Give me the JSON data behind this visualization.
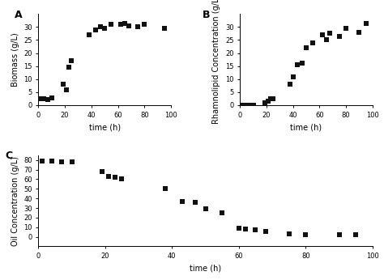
{
  "panel_A": {
    "label": "A",
    "scatter_x": [
      1,
      4,
      7,
      10,
      19,
      21,
      23,
      25,
      38,
      43,
      47,
      50,
      55,
      62,
      65,
      68,
      75,
      80,
      95
    ],
    "scatter_y": [
      2.5,
      2.5,
      2.3,
      2.8,
      8.0,
      6.0,
      14.5,
      17.0,
      27.0,
      29.0,
      30.0,
      29.5,
      31.0,
      31.0,
      31.5,
      30.5,
      30.2,
      31.0,
      29.5
    ],
    "xlabel": "time (h)",
    "ylabel": "Biomass (g/L)",
    "xlim": [
      0,
      100
    ],
    "ylim": [
      0,
      35
    ],
    "yticks": [
      0,
      5,
      10,
      15,
      20,
      25,
      30
    ],
    "xticks": [
      0,
      20,
      40,
      60,
      80,
      100
    ],
    "logistic_p0": [
      31,
      0.15,
      33
    ]
  },
  "panel_B": {
    "label": "B",
    "scatter_x": [
      1,
      4,
      7,
      10,
      19,
      21,
      23,
      25,
      38,
      40,
      43,
      47,
      50,
      55,
      62,
      65,
      68,
      75,
      80,
      90,
      95
    ],
    "scatter_y": [
      0.0,
      0.0,
      0.0,
      0.0,
      1.0,
      1.5,
      2.5,
      2.5,
      8.0,
      11.0,
      15.5,
      16.0,
      22.0,
      24.0,
      27.0,
      25.0,
      27.5,
      26.5,
      29.5,
      28.0,
      31.5
    ],
    "xlabel": "time (h)",
    "ylabel": "Rhamnolipid Concentration (g/L)",
    "xlim": [
      0,
      100
    ],
    "ylim": [
      0,
      35
    ],
    "yticks": [
      0,
      5,
      10,
      15,
      20,
      25,
      30
    ],
    "xticks": [
      0,
      20,
      40,
      60,
      80,
      100
    ],
    "power_p0": [
      0.001,
      2.0
    ]
  },
  "panel_C": {
    "label": "C",
    "scatter_x": [
      1,
      4,
      7,
      10,
      19,
      21,
      23,
      25,
      38,
      43,
      47,
      50,
      55,
      60,
      62,
      65,
      68,
      75,
      80,
      90,
      95
    ],
    "scatter_y": [
      79.0,
      79.0,
      78.5,
      78.0,
      68.0,
      63.0,
      62.0,
      60.5,
      50.5,
      37.0,
      36.0,
      29.0,
      25.0,
      9.0,
      8.0,
      7.5,
      5.5,
      3.0,
      2.0,
      2.5,
      2.5
    ],
    "xlabel": "time (h)",
    "ylabel": "Oil Concentration (g/L)",
    "xlim": [
      0,
      100
    ],
    "ylim": [
      -10,
      85
    ],
    "yticks": [
      0,
      10,
      20,
      30,
      40,
      50,
      60,
      70,
      80
    ],
    "xticks": [
      0,
      20,
      40,
      60,
      80,
      100
    ],
    "sigmoid_p0": [
      80,
      0.12,
      50
    ]
  },
  "line_color": "#222222",
  "scatter_color": "#111111",
  "background": "#ffffff",
  "marker_size": 4,
  "font_size": 7,
  "label_font_size": 9,
  "tick_font_size": 6,
  "line_width": 1.0
}
